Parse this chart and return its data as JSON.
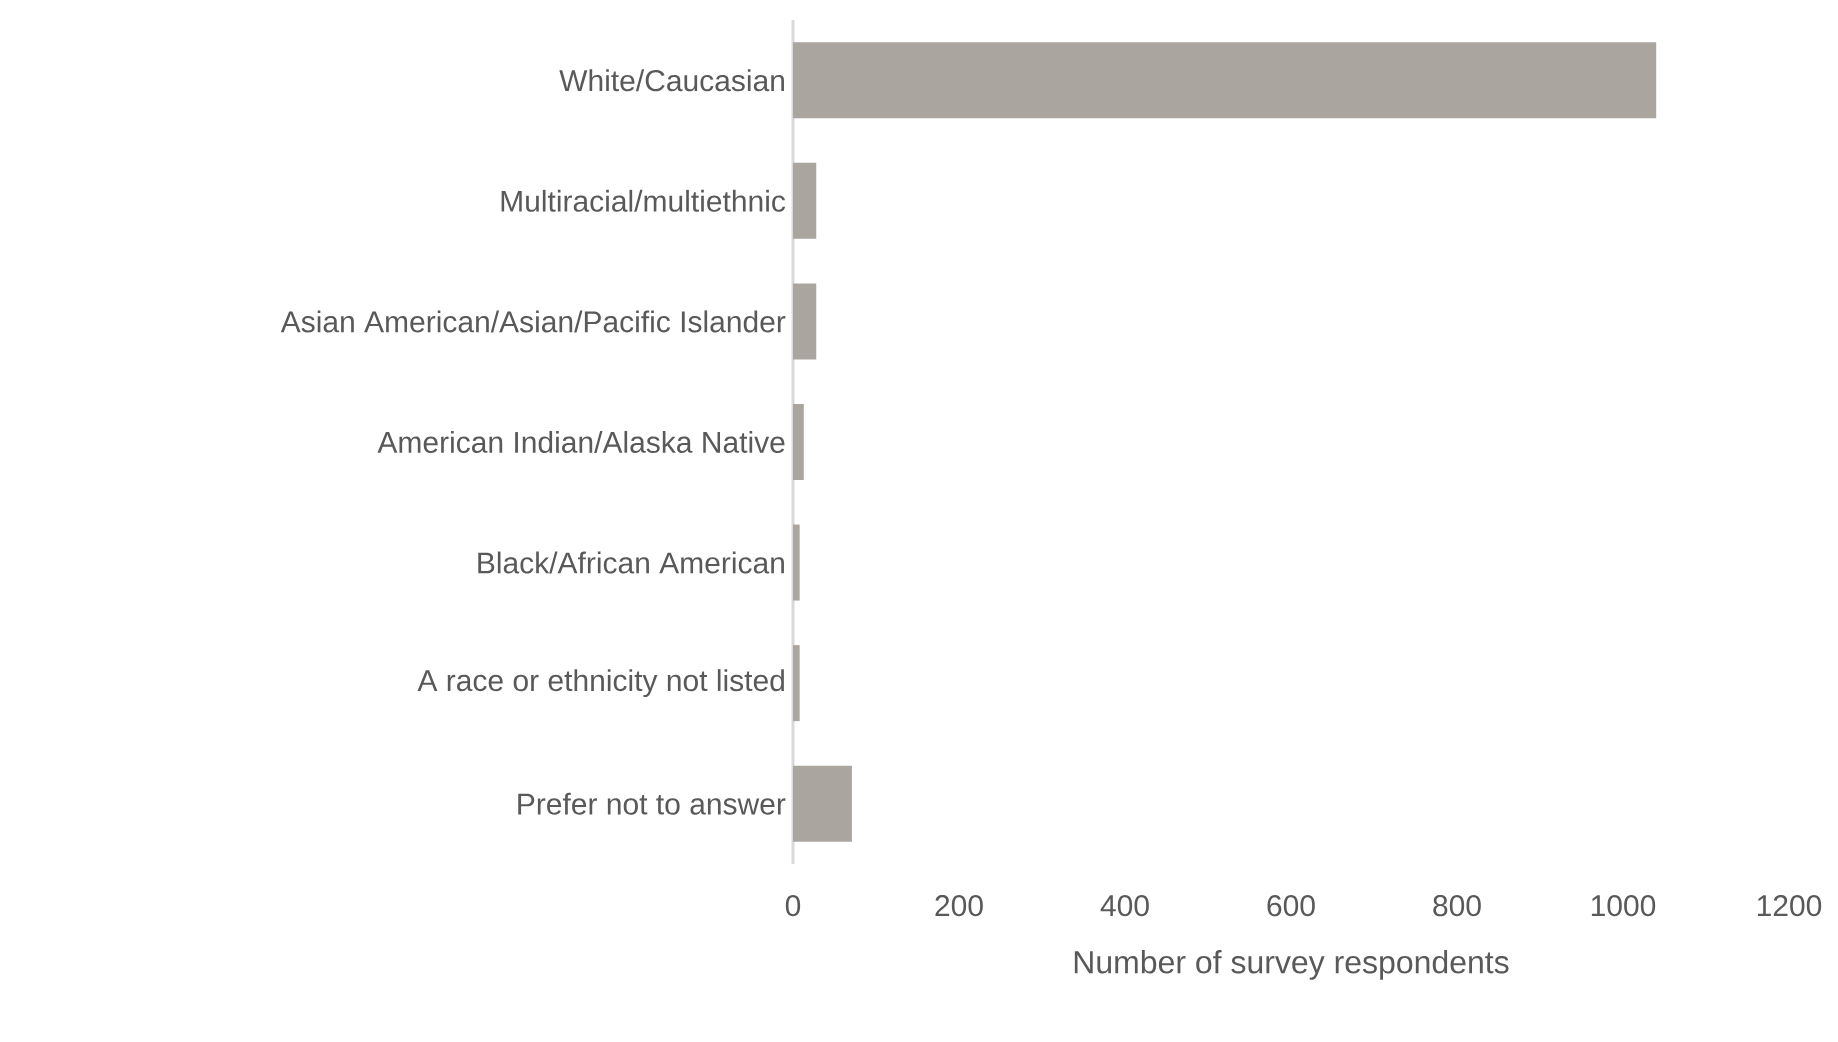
{
  "chart_data": {
    "type": "bar",
    "orientation": "horizontal",
    "xlabel": "Number  of survey respondents",
    "categories": [
      "White/Caucasian",
      "Multiracial/multiethnic",
      "Asian American/Asian/Pacific Islander",
      "American Indian/Alaska Native",
      "Black/African American",
      "A race or ethnicity not listed",
      "Prefer not to answer"
    ],
    "values": [
      1040,
      28,
      28,
      13,
      8,
      8,
      71
    ],
    "color": "#aba5a0",
    "xlim": [
      0,
      1200
    ],
    "xticks": [
      0,
      200,
      400,
      600,
      800,
      1000,
      1200
    ],
    "grid": false
  }
}
